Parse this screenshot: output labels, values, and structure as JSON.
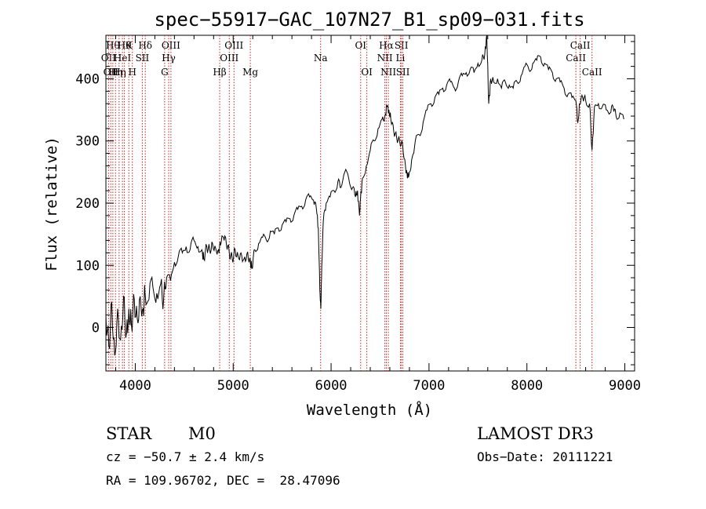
{
  "chart_data": {
    "type": "line",
    "title": "spec−55917−GAC_107N27_B1_sp09−031.fits",
    "xlabel": "Wavelength (Å)",
    "ylabel": "Flux (relative)",
    "xlim": [
      3700,
      9100
    ],
    "ylim": [
      -70,
      470
    ],
    "xticks": [
      4000,
      5000,
      6000,
      7000,
      8000,
      9000
    ],
    "xtick_labels": [
      "4000",
      "5000",
      "6000",
      "7000",
      "8000",
      "9000"
    ],
    "yticks": [
      0,
      100,
      200,
      300,
      400
    ],
    "ytick_labels": [
      "0",
      "100",
      "200",
      "300",
      "400"
    ],
    "line_color": "#000000",
    "marker_color": "#cc2222",
    "series": [
      {
        "name": "flux",
        "points": [
          [
            3700,
            20
          ],
          [
            3730,
            -30
          ],
          [
            3760,
            40
          ],
          [
            3790,
            -45
          ],
          [
            3820,
            30
          ],
          [
            3850,
            -20
          ],
          [
            3880,
            50
          ],
          [
            3910,
            -10
          ],
          [
            3935,
            30
          ],
          [
            3960,
            5
          ],
          [
            3990,
            45
          ],
          [
            4020,
            15
          ],
          [
            4050,
            50
          ],
          [
            4080,
            30
          ],
          [
            4100,
            55
          ],
          [
            4140,
            45
          ],
          [
            4180,
            65
          ],
          [
            4220,
            55
          ],
          [
            4260,
            70
          ],
          [
            4290,
            45
          ],
          [
            4320,
            80
          ],
          [
            4360,
            75
          ],
          [
            4400,
            105
          ],
          [
            4440,
            115
          ],
          [
            4480,
            120
          ],
          [
            4520,
            130
          ],
          [
            4560,
            125
          ],
          [
            4600,
            140
          ],
          [
            4640,
            130
          ],
          [
            4680,
            125
          ],
          [
            4700,
            110
          ],
          [
            4730,
            130
          ],
          [
            4760,
            125
          ],
          [
            4790,
            135
          ],
          [
            4820,
            128
          ],
          [
            4850,
            125
          ],
          [
            4870,
            132
          ],
          [
            4900,
            145
          ],
          [
            4930,
            135
          ],
          [
            4960,
            120
          ],
          [
            4990,
            110
          ],
          [
            5020,
            125
          ],
          [
            5050,
            115
          ],
          [
            5080,
            120
          ],
          [
            5110,
            110
          ],
          [
            5140,
            118
          ],
          [
            5170,
            112
          ],
          [
            5190,
            95
          ],
          [
            5220,
            125
          ],
          [
            5260,
            135
          ],
          [
            5300,
            145
          ],
          [
            5340,
            140
          ],
          [
            5380,
            155
          ],
          [
            5420,
            150
          ],
          [
            5460,
            160
          ],
          [
            5500,
            165
          ],
          [
            5540,
            170
          ],
          [
            5580,
            175
          ],
          [
            5620,
            180
          ],
          [
            5660,
            190
          ],
          [
            5700,
            195
          ],
          [
            5740,
            205
          ],
          [
            5780,
            210
          ],
          [
            5820,
            205
          ],
          [
            5850,
            190
          ],
          [
            5870,
            160
          ],
          [
            5885,
            60
          ],
          [
            5895,
            30
          ],
          [
            5905,
            100
          ],
          [
            5920,
            170
          ],
          [
            5950,
            200
          ],
          [
            5990,
            210
          ],
          [
            6030,
            220
          ],
          [
            6070,
            235
          ],
          [
            6100,
            225
          ],
          [
            6140,
            250
          ],
          [
            6180,
            240
          ],
          [
            6220,
            225
          ],
          [
            6250,
            210
          ],
          [
            6270,
            220
          ],
          [
            6290,
            180
          ],
          [
            6300,
            205
          ],
          [
            6320,
            240
          ],
          [
            6360,
            260
          ],
          [
            6400,
            285
          ],
          [
            6440,
            300
          ],
          [
            6480,
            320
          ],
          [
            6520,
            335
          ],
          [
            6550,
            340
          ],
          [
            6570,
            355
          ],
          [
            6590,
            350
          ],
          [
            6610,
            335
          ],
          [
            6640,
            315
          ],
          [
            6670,
            305
          ],
          [
            6700,
            300
          ],
          [
            6730,
            295
          ],
          [
            6760,
            260
          ],
          [
            6780,
            240
          ],
          [
            6800,
            250
          ],
          [
            6830,
            275
          ],
          [
            6860,
            300
          ],
          [
            6900,
            310
          ],
          [
            6940,
            330
          ],
          [
            6980,
            350
          ],
          [
            7020,
            360
          ],
          [
            7060,
            370
          ],
          [
            7100,
            375
          ],
          [
            7140,
            385
          ],
          [
            7180,
            390
          ],
          [
            7220,
            395
          ],
          [
            7260,
            385
          ],
          [
            7300,
            395
          ],
          [
            7340,
            405
          ],
          [
            7380,
            410
          ],
          [
            7420,
            415
          ],
          [
            7460,
            410
          ],
          [
            7500,
            425
          ],
          [
            7540,
            430
          ],
          [
            7570,
            440
          ],
          [
            7590,
            470
          ],
          [
            7610,
            360
          ],
          [
            7630,
            400
          ],
          [
            7660,
            395
          ],
          [
            7700,
            400
          ],
          [
            7740,
            385
          ],
          [
            7780,
            395
          ],
          [
            7820,
            390
          ],
          [
            7860,
            385
          ],
          [
            7900,
            395
          ],
          [
            7940,
            405
          ],
          [
            7980,
            420
          ],
          [
            8020,
            415
          ],
          [
            8060,
            425
          ],
          [
            8100,
            430
          ],
          [
            8140,
            435
          ],
          [
            8180,
            425
          ],
          [
            8220,
            415
          ],
          [
            8260,
            410
          ],
          [
            8300,
            400
          ],
          [
            8340,
            395
          ],
          [
            8380,
            385
          ],
          [
            8420,
            375
          ],
          [
            8460,
            370
          ],
          [
            8500,
            365
          ],
          [
            8520,
            330
          ],
          [
            8540,
            360
          ],
          [
            8570,
            370
          ],
          [
            8600,
            365
          ],
          [
            8640,
            360
          ],
          [
            8665,
            285
          ],
          [
            8690,
            355
          ],
          [
            8730,
            360
          ],
          [
            8770,
            355
          ],
          [
            8810,
            350
          ],
          [
            8850,
            345
          ],
          [
            8880,
            355
          ],
          [
            8910,
            340
          ],
          [
            8950,
            345
          ],
          [
            8990,
            335
          ]
        ]
      }
    ],
    "lines": [
      {
        "x": 3727,
        "label": "OII",
        "row": 2
      },
      {
        "x": 3750,
        "label": "OII",
        "row": 3
      },
      {
        "x": 3771,
        "label": "Hθ",
        "row": 1
      },
      {
        "x": 3798,
        "label": "Hη",
        "row": 3
      },
      {
        "x": 3835,
        "label": "Hη",
        "row": 3
      },
      {
        "x": 3869,
        "label": "HeI",
        "row": 2
      },
      {
        "x": 3889,
        "label": "Hθ",
        "row": 1
      },
      {
        "x": 3934,
        "label": "K",
        "row": 1
      },
      {
        "x": 3970,
        "label": "H",
        "row": 3
      },
      {
        "x": 4072,
        "label": "SII",
        "row": 2
      },
      {
        "x": 4102,
        "label": "Hδ",
        "row": 1
      },
      {
        "x": 4300,
        "label": "G",
        "row": 3
      },
      {
        "x": 4341,
        "label": "Hγ",
        "row": 2
      },
      {
        "x": 4364,
        "label": "OIII",
        "row": 1
      },
      {
        "x": 4862,
        "label": "Hβ",
        "row": 3
      },
      {
        "x": 4960,
        "label": "OIII",
        "row": 2
      },
      {
        "x": 5008,
        "label": "OIII",
        "row": 1
      },
      {
        "x": 5175,
        "label": "Mg",
        "row": 3
      },
      {
        "x": 5893,
        "label": "Na",
        "row": 2
      },
      {
        "x": 6302,
        "label": "OI",
        "row": 1
      },
      {
        "x": 6365,
        "label": "OI",
        "row": 3
      },
      {
        "x": 6549,
        "label": "NII",
        "row": 2
      },
      {
        "x": 6564,
        "label": "Hα",
        "row": 1
      },
      {
        "x": 6585,
        "label": "NII",
        "row": 3
      },
      {
        "x": 6708,
        "label": "Li",
        "row": 2
      },
      {
        "x": 6718,
        "label": "SII",
        "row": 1
      },
      {
        "x": 6733,
        "label": "SII",
        "row": 3
      },
      {
        "x": 8500,
        "label": "CaII",
        "row": 2
      },
      {
        "x": 8544,
        "label": "CaII",
        "row": 1
      },
      {
        "x": 8665,
        "label": "CaII",
        "row": 3
      }
    ]
  },
  "info": {
    "class": "STAR",
    "subclass": "M0",
    "survey": "LAMOST DR3",
    "cz": "cz = −50.7 ± 2.4 km/s",
    "obs_date": "Obs−Date: 20111221",
    "radec": "RA = 109.96702, DEC =  28.47096"
  }
}
